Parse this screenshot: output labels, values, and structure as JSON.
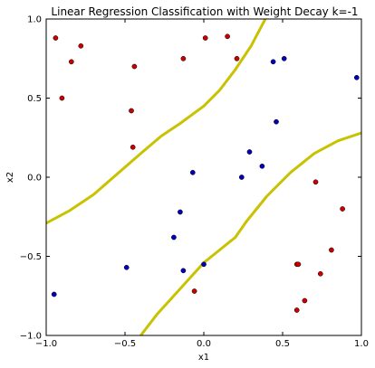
{
  "chart_data": {
    "type": "scatter",
    "title": "Linear Regression Classification with Weight Decay k=-1",
    "xlabel": "x1",
    "ylabel": "x2",
    "xlim": [
      -1.0,
      1.0
    ],
    "ylim": [
      -1.0,
      1.0
    ],
    "xticks": [
      -1.0,
      -0.5,
      0.0,
      0.5,
      1.0
    ],
    "yticks": [
      -1.0,
      -0.5,
      0.0,
      0.5,
      1.0
    ],
    "xtick_labels": [
      "−1.0",
      "−0.5",
      "0.0",
      "0.5",
      "1.0"
    ],
    "ytick_labels": [
      "−1.0",
      "−0.5",
      "0.0",
      "0.5",
      "1.0"
    ],
    "grid": false,
    "colors": {
      "red": "#cc0000",
      "blue": "#0000bb",
      "boundary": "#c8c200",
      "frame": "#000000"
    },
    "series": [
      {
        "color": "red",
        "points": [
          [
            -0.94,
            0.88
          ],
          [
            -0.84,
            0.73
          ],
          [
            -0.78,
            0.83
          ],
          [
            -0.9,
            0.5
          ],
          [
            -0.44,
            0.7
          ],
          [
            -0.46,
            0.42
          ],
          [
            -0.45,
            0.19
          ],
          [
            -0.13,
            0.75
          ],
          [
            0.01,
            0.88
          ],
          [
            0.15,
            0.89
          ],
          [
            0.21,
            0.75
          ],
          [
            0.71,
            -0.03
          ],
          [
            0.88,
            -0.2
          ],
          [
            0.81,
            -0.46
          ],
          [
            0.59,
            -0.55
          ],
          [
            0.6,
            -0.55
          ],
          [
            0.74,
            -0.61
          ],
          [
            0.64,
            -0.78
          ],
          [
            0.59,
            -0.84
          ],
          [
            -0.06,
            -0.72
          ]
        ]
      },
      {
        "color": "blue",
        "points": [
          [
            0.44,
            0.73
          ],
          [
            0.51,
            0.75
          ],
          [
            0.97,
            0.63
          ],
          [
            0.46,
            0.35
          ],
          [
            0.29,
            0.16
          ],
          [
            0.37,
            0.07
          ],
          [
            0.24,
            0.0
          ],
          [
            -0.07,
            0.03
          ],
          [
            -0.15,
            -0.22
          ],
          [
            -0.19,
            -0.38
          ],
          [
            -0.49,
            -0.57
          ],
          [
            -0.13,
            -0.59
          ],
          [
            0.0,
            -0.55
          ],
          [
            -0.95,
            -0.74
          ]
        ]
      }
    ],
    "boundaries": [
      {
        "color": "boundary",
        "points": [
          [
            -1.0,
            -0.29
          ],
          [
            -0.85,
            -0.21
          ],
          [
            -0.7,
            -0.11
          ],
          [
            -0.55,
            0.02
          ],
          [
            -0.4,
            0.15
          ],
          [
            -0.27,
            0.26
          ],
          [
            -0.15,
            0.34
          ],
          [
            0.0,
            0.45
          ],
          [
            0.1,
            0.55
          ],
          [
            0.2,
            0.68
          ],
          [
            0.3,
            0.83
          ],
          [
            0.39,
            1.0
          ]
        ]
      },
      {
        "color": "boundary",
        "points": [
          [
            -0.4,
            -1.0
          ],
          [
            -0.3,
            -0.87
          ],
          [
            -0.2,
            -0.76
          ],
          [
            -0.1,
            -0.65
          ],
          [
            0.0,
            -0.54
          ],
          [
            0.1,
            -0.46
          ],
          [
            0.2,
            -0.38
          ],
          [
            0.27,
            -0.28
          ],
          [
            0.4,
            -0.12
          ],
          [
            0.55,
            0.03
          ],
          [
            0.7,
            0.15
          ],
          [
            0.85,
            0.23
          ],
          [
            1.0,
            0.28
          ]
        ]
      }
    ]
  }
}
